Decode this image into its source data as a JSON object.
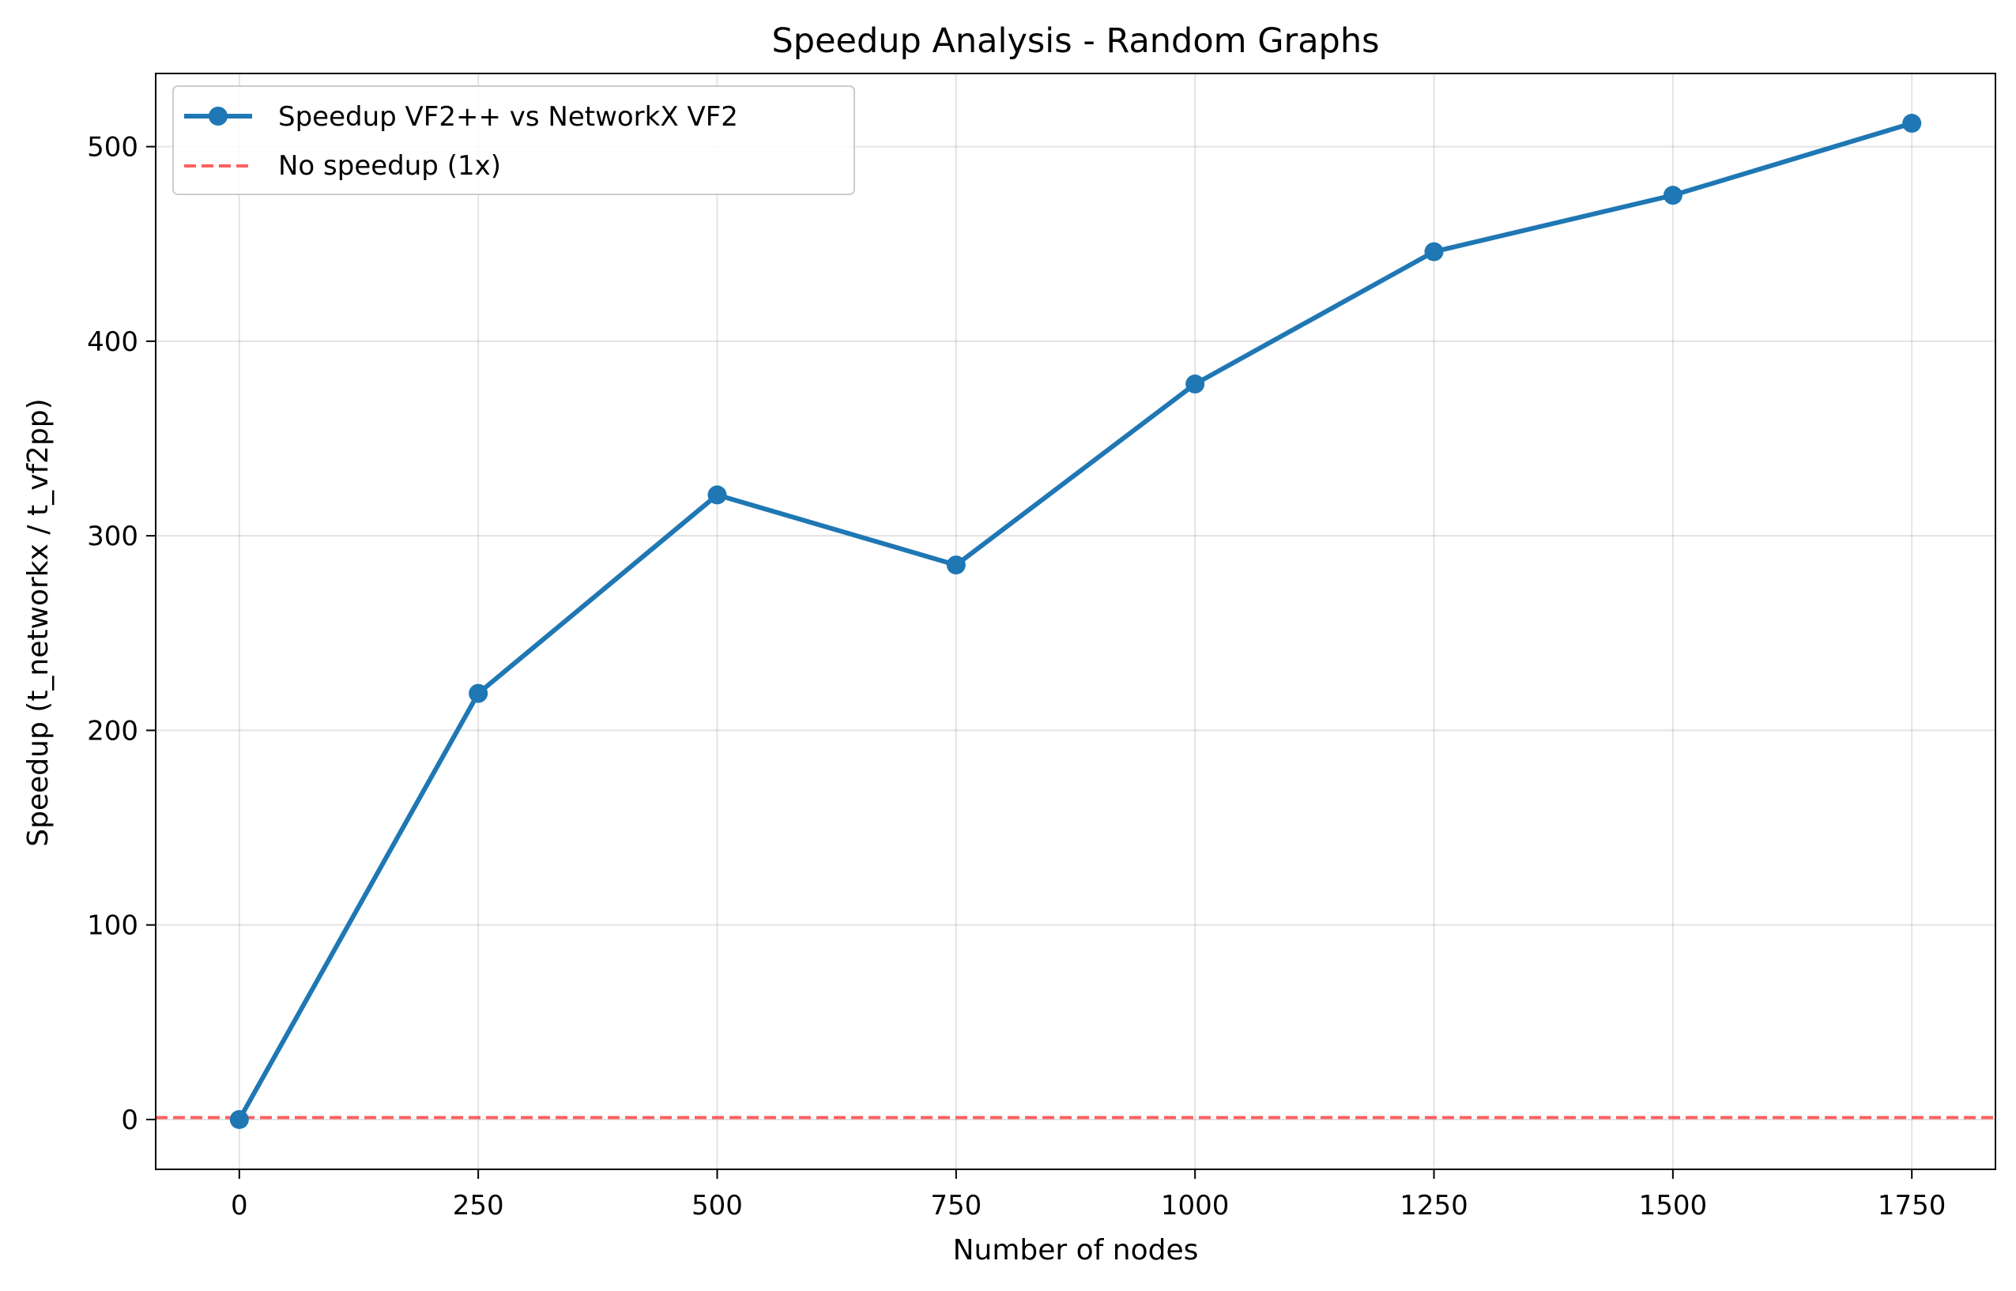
{
  "chart_data": {
    "type": "line",
    "title": "Speedup Analysis - Random Graphs",
    "xlabel": "Number of nodes",
    "ylabel": "Speedup (t_networkx / t_vf2pp)",
    "xlim": [
      -87.5,
      1837.5
    ],
    "ylim": [
      -25.6,
      537.6
    ],
    "xticks": [
      0,
      250,
      500,
      750,
      1000,
      1250,
      1500,
      1750
    ],
    "yticks": [
      0,
      100,
      200,
      300,
      400,
      500
    ],
    "grid": true,
    "legend_position": "top-left",
    "series": [
      {
        "name": "Speedup VF2++ vs NetworkX VF2",
        "color": "#1f77b4",
        "marker": "circle",
        "x": [
          0,
          250,
          500,
          750,
          1000,
          1250,
          1500,
          1750
        ],
        "y": [
          0,
          219,
          321,
          285,
          378,
          446,
          475,
          512
        ]
      }
    ],
    "reference_lines": [
      {
        "name": "No speedup (1x)",
        "y": 1,
        "color": "#ff4444",
        "style": "dashed"
      }
    ]
  }
}
